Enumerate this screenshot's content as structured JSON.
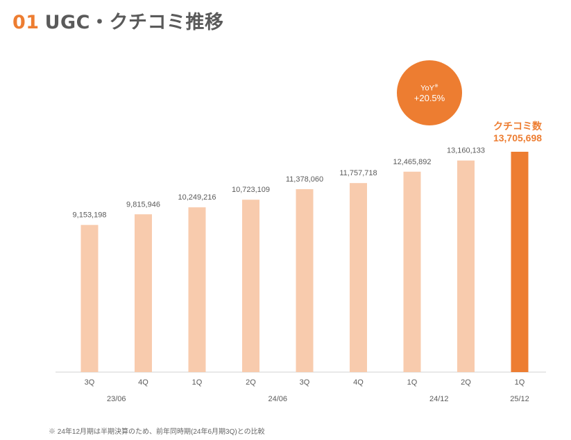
{
  "header": {
    "number": "01",
    "title": "UGC・クチコミ推移"
  },
  "yoy": {
    "label": "YoY",
    "mark": "※",
    "value": "+20.5%"
  },
  "highlight": {
    "name": "クチコミ数",
    "value": "13,705,698"
  },
  "footnote": "※ 24年12月期は半期決算のため、前年同時期(24年6月期3Q)との比較",
  "colors": {
    "accent": "#ed7d31",
    "bar": "#f8cbad",
    "text": "#5a5a5a"
  },
  "chart_data": {
    "type": "bar",
    "categories": [
      "3Q",
      "4Q",
      "1Q",
      "2Q",
      "3Q",
      "4Q",
      "1Q",
      "2Q",
      "1Q"
    ],
    "periods": [
      {
        "label": "23/06",
        "from": 0,
        "to": 1
      },
      {
        "label": "24/06",
        "from": 2,
        "to": 5
      },
      {
        "label": "24/12",
        "from": 6,
        "to": 7
      },
      {
        "label": "25/12",
        "from": 8,
        "to": 8
      }
    ],
    "values": [
      9153198,
      9815946,
      10249216,
      10723109,
      11378060,
      11757718,
      12465892,
      13160133,
      13705698
    ],
    "value_labels": [
      "9,153,198",
      "9,815,946",
      "10,249,216",
      "10,723,109",
      "11,378,060",
      "11,757,718",
      "12,465,892",
      "13,160,133",
      "13,705,698"
    ],
    "highlight_index": 8,
    "series_name": "クチコミ数",
    "ylim": [
      0,
      13705698
    ],
    "grid": false
  }
}
